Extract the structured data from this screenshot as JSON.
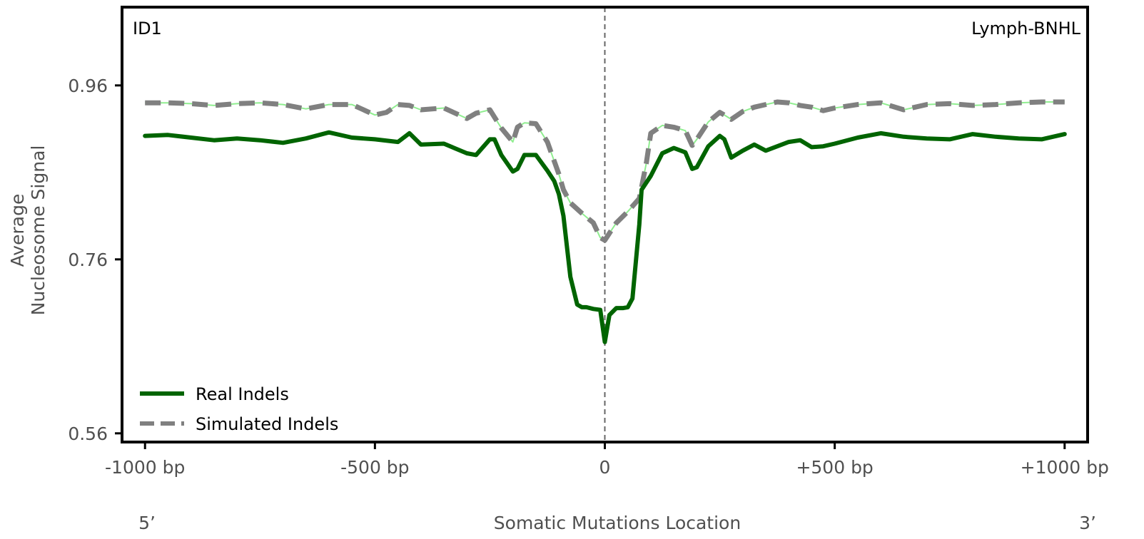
{
  "chart_data": {
    "type": "line",
    "corner_left": "ID1",
    "corner_right": "Lymph-BNHL",
    "xlabel": "Somatic Mutations Location",
    "ylabel_lines": [
      "Average",
      "Nucleosome Signal"
    ],
    "end_left": "5’",
    "end_right": "3’",
    "xlim": [
      -1050,
      1050
    ],
    "ylim": [
      0.55,
      1.05
    ],
    "x_ticks": [
      {
        "value": -1000,
        "label": "-1000 bp"
      },
      {
        "value": -500,
        "label": "-500 bp"
      },
      {
        "value": 0,
        "label": "0"
      },
      {
        "value": 500,
        "label": "+500 bp"
      },
      {
        "value": 1000,
        "label": "+1000 bp"
      }
    ],
    "y_ticks": [
      {
        "value": 0.56,
        "label": "0.56"
      },
      {
        "value": 0.76,
        "label": "0.76"
      },
      {
        "value": 0.96,
        "label": "0.96"
      }
    ],
    "reference_line_x": 0,
    "legend_position": "bottom-left",
    "series": [
      {
        "name": "Real Indels",
        "color": "#006400",
        "style": "solid",
        "x": [
          -1000,
          -950,
          -900,
          -850,
          -800,
          -750,
          -700,
          -650,
          -600,
          -550,
          -500,
          -450,
          -425,
          -400,
          -350,
          -300,
          -280,
          -250,
          -240,
          -225,
          -200,
          -190,
          -175,
          -150,
          -125,
          -110,
          -100,
          -90,
          -75,
          -60,
          -50,
          -40,
          -25,
          -10,
          0,
          10,
          25,
          40,
          50,
          60,
          75,
          80,
          90,
          100,
          125,
          150,
          175,
          190,
          200,
          225,
          250,
          260,
          275,
          300,
          325,
          350,
          375,
          400,
          425,
          450,
          475,
          500,
          550,
          600,
          650,
          700,
          750,
          800,
          850,
          900,
          950,
          1000
        ],
        "y": [
          0.902,
          0.903,
          0.9,
          0.897,
          0.899,
          0.897,
          0.894,
          0.899,
          0.906,
          0.9,
          0.898,
          0.895,
          0.905,
          0.892,
          0.893,
          0.882,
          0.88,
          0.898,
          0.898,
          0.88,
          0.861,
          0.864,
          0.88,
          0.88,
          0.862,
          0.85,
          0.835,
          0.81,
          0.74,
          0.708,
          0.705,
          0.705,
          0.703,
          0.702,
          0.665,
          0.696,
          0.704,
          0.704,
          0.705,
          0.715,
          0.8,
          0.84,
          0.848,
          0.856,
          0.882,
          0.888,
          0.883,
          0.864,
          0.866,
          0.89,
          0.902,
          0.898,
          0.877,
          0.885,
          0.892,
          0.885,
          0.89,
          0.895,
          0.897,
          0.889,
          0.89,
          0.893,
          0.9,
          0.905,
          0.901,
          0.899,
          0.898,
          0.904,
          0.901,
          0.899,
          0.898,
          0.904
        ]
      },
      {
        "name": "Simulated Indels",
        "color": "#808080",
        "style": "dashed",
        "x": [
          -1000,
          -950,
          -900,
          -850,
          -800,
          -750,
          -700,
          -650,
          -600,
          -550,
          -500,
          -475,
          -450,
          -425,
          -400,
          -350,
          -300,
          -280,
          -250,
          -225,
          -200,
          -190,
          -175,
          -150,
          -125,
          -100,
          -90,
          -75,
          -50,
          -25,
          -10,
          0,
          10,
          25,
          50,
          75,
          90,
          100,
          125,
          150,
          175,
          190,
          200,
          225,
          250,
          260,
          275,
          300,
          325,
          350,
          375,
          400,
          425,
          450,
          475,
          500,
          550,
          600,
          650,
          700,
          750,
          800,
          850,
          900,
          950,
          1000
        ],
        "y": [
          0.94,
          0.94,
          0.939,
          0.937,
          0.939,
          0.94,
          0.938,
          0.933,
          0.938,
          0.938,
          0.926,
          0.929,
          0.938,
          0.937,
          0.932,
          0.934,
          0.922,
          0.928,
          0.932,
          0.911,
          0.895,
          0.912,
          0.917,
          0.916,
          0.895,
          0.858,
          0.84,
          0.825,
          0.813,
          0.802,
          0.785,
          0.782,
          0.79,
          0.802,
          0.815,
          0.83,
          0.87,
          0.905,
          0.914,
          0.912,
          0.908,
          0.891,
          0.898,
          0.918,
          0.929,
          0.926,
          0.921,
          0.93,
          0.935,
          0.938,
          0.941,
          0.94,
          0.937,
          0.935,
          0.931,
          0.934,
          0.938,
          0.94,
          0.932,
          0.938,
          0.939,
          0.937,
          0.938,
          0.94,
          0.941,
          0.941
        ]
      }
    ]
  }
}
